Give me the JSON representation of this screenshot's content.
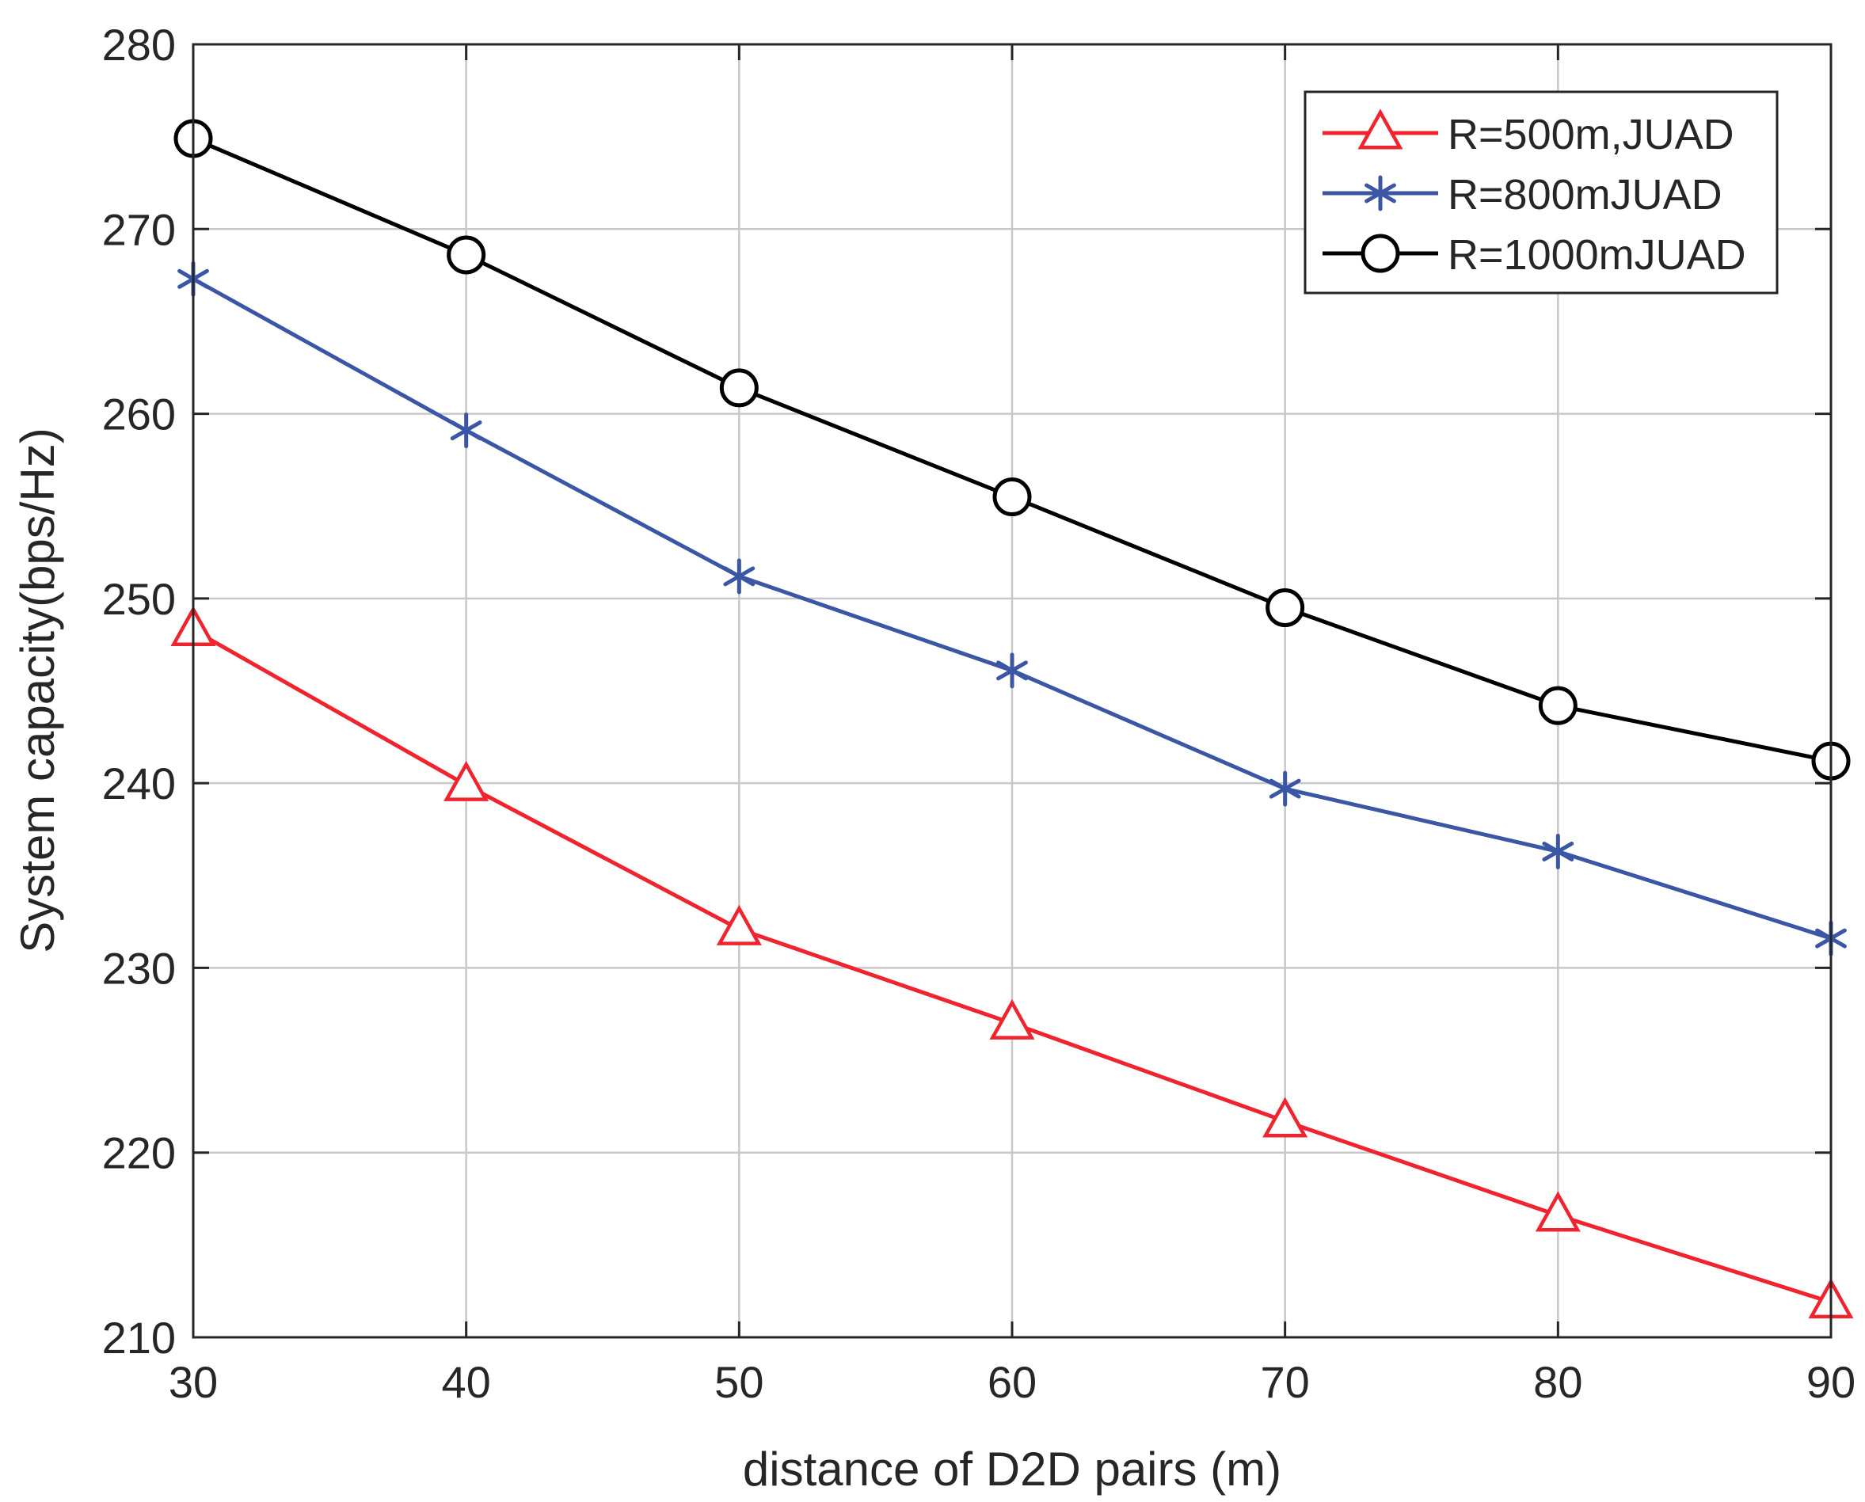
{
  "chart_data": {
    "type": "line",
    "title": "",
    "xlabel": "distance of D2D pairs (m)",
    "ylabel": "System capacity(bps/Hz)",
    "xlim": [
      30,
      90
    ],
    "ylim": [
      210,
      280
    ],
    "xticks": [
      30,
      40,
      50,
      60,
      70,
      80,
      90
    ],
    "yticks": [
      210,
      220,
      230,
      240,
      250,
      260,
      270,
      280
    ],
    "grid": true,
    "legend_position": "top-right",
    "x": [
      30,
      40,
      50,
      60,
      70,
      80,
      90
    ],
    "series": [
      {
        "name": "R=500m,JUAD",
        "color": "#f0242e",
        "marker": "triangle",
        "values": [
          248.3,
          239.9,
          232.1,
          227.0,
          221.7,
          216.6,
          211.9
        ]
      },
      {
        "name": "R=800mJUAD",
        "color": "#3a56a5",
        "marker": "asterisk",
        "values": [
          267.3,
          259.1,
          251.2,
          246.1,
          239.7,
          236.3,
          231.6
        ]
      },
      {
        "name": "R=1000mJUAD",
        "color": "#000000",
        "marker": "circle",
        "values": [
          274.9,
          268.6,
          261.4,
          255.5,
          249.5,
          244.2,
          241.2
        ]
      }
    ]
  }
}
